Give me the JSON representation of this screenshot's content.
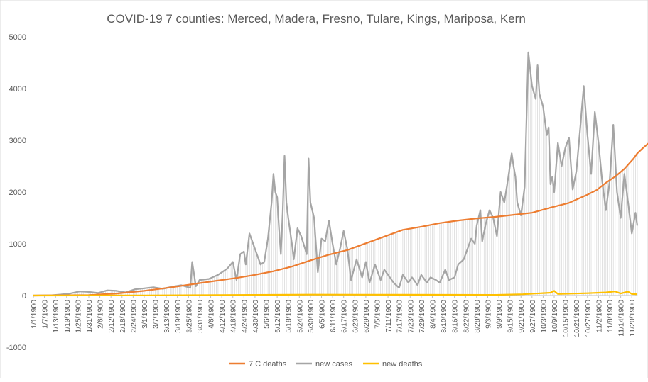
{
  "chart_data": {
    "type": "line",
    "title": "COVID-19 7 counties:  Merced,  Madera,  Fresno, Tulare,  Kings,  Mariposa,  Kern",
    "xlabel": "",
    "ylabel": "",
    "ylim": [
      -1000,
      5000
    ],
    "yticks": [
      -1000,
      0,
      1000,
      2000,
      3000,
      4000,
      5000
    ],
    "x_start": "1/1/1900",
    "x_end": "11/24/1900",
    "x_tick_step_days": 6,
    "x_tick_labels": [
      "1/1/1900",
      "1/7/1900",
      "1/13/1900",
      "1/19/1900",
      "1/25/1900",
      "1/31/1900",
      "2/6/1900",
      "2/12/1900",
      "2/18/1900",
      "2/24/1900",
      "3/1/1900",
      "3/7/1900",
      "3/13/1900",
      "3/19/1900",
      "3/25/1900",
      "3/31/1900",
      "4/6/1900",
      "4/12/1900",
      "4/18/1900",
      "4/24/1900",
      "4/30/1900",
      "5/6/1900",
      "5/12/1900",
      "5/18/1900",
      "5/24/1900",
      "5/30/1900",
      "6/5/1900",
      "6/11/1900",
      "6/17/1900",
      "6/23/1900",
      "6/29/1900",
      "7/5/1900",
      "7/11/1900",
      "7/17/1900",
      "7/23/1900",
      "7/29/1900",
      "8/4/1900",
      "8/10/1900",
      "8/16/1900",
      "8/22/1900",
      "8/28/1900",
      "9/3/1900",
      "9/9/1900",
      "9/15/1900",
      "9/21/1900",
      "9/27/1900",
      "10/3/1900",
      "10/9/1900",
      "10/15/1900",
      "10/21/1900",
      "10/27/1900",
      "11/2/1900",
      "11/8/1900",
      "11/14/1900",
      "11/20/1900"
    ],
    "grid": false,
    "drop_lines": true,
    "legend_position": "bottom",
    "series": [
      {
        "name": "7 C deaths",
        "color": "#ED7D31",
        "points": [
          [
            0,
            0
          ],
          [
            30,
            10
          ],
          [
            45,
            40
          ],
          [
            60,
            90
          ],
          [
            75,
            160
          ],
          [
            90,
            240
          ],
          [
            100,
            290
          ],
          [
            110,
            340
          ],
          [
            120,
            400
          ],
          [
            130,
            470
          ],
          [
            140,
            560
          ],
          [
            150,
            680
          ],
          [
            160,
            790
          ],
          [
            170,
            880
          ],
          [
            180,
            1010
          ],
          [
            190,
            1140
          ],
          [
            200,
            1270
          ],
          [
            210,
            1330
          ],
          [
            220,
            1400
          ],
          [
            230,
            1450
          ],
          [
            240,
            1490
          ],
          [
            250,
            1520
          ],
          [
            260,
            1560
          ],
          [
            270,
            1600
          ],
          [
            280,
            1700
          ],
          [
            290,
            1790
          ],
          [
            300,
            1950
          ],
          [
            305,
            2040
          ],
          [
            310,
            2180
          ],
          [
            315,
            2300
          ],
          [
            320,
            2450
          ],
          [
            325,
            2650
          ],
          [
            330,
            2850
          ],
          [
            335,
            3000
          ],
          [
            327,
            2750
          ]
        ]
      },
      {
        "name": "new cases",
        "color": "#A5A5A5",
        "points": [
          [
            0,
            0
          ],
          [
            10,
            5
          ],
          [
            15,
            20
          ],
          [
            20,
            40
          ],
          [
            25,
            80
          ],
          [
            30,
            70
          ],
          [
            35,
            50
          ],
          [
            40,
            100
          ],
          [
            45,
            90
          ],
          [
            50,
            60
          ],
          [
            55,
            120
          ],
          [
            60,
            140
          ],
          [
            65,
            160
          ],
          [
            70,
            130
          ],
          [
            75,
            170
          ],
          [
            80,
            200
          ],
          [
            85,
            150
          ],
          [
            86,
            650
          ],
          [
            88,
            180
          ],
          [
            90,
            300
          ],
          [
            95,
            320
          ],
          [
            100,
            400
          ],
          [
            105,
            520
          ],
          [
            108,
            650
          ],
          [
            110,
            300
          ],
          [
            112,
            800
          ],
          [
            114,
            850
          ],
          [
            115,
            600
          ],
          [
            117,
            1200
          ],
          [
            120,
            900
          ],
          [
            123,
            600
          ],
          [
            125,
            650
          ],
          [
            127,
            1100
          ],
          [
            129,
            1800
          ],
          [
            130,
            2350
          ],
          [
            131,
            2000
          ],
          [
            132,
            1900
          ],
          [
            133,
            1300
          ],
          [
            134,
            800
          ],
          [
            135,
            1600
          ],
          [
            136,
            2700
          ],
          [
            137,
            1800
          ],
          [
            138,
            1500
          ],
          [
            140,
            1000
          ],
          [
            141,
            700
          ],
          [
            143,
            1300
          ],
          [
            145,
            1150
          ],
          [
            148,
            800
          ],
          [
            149,
            2650
          ],
          [
            150,
            1800
          ],
          [
            152,
            1500
          ],
          [
            154,
            450
          ],
          [
            156,
            1100
          ],
          [
            158,
            1050
          ],
          [
            160,
            1450
          ],
          [
            162,
            1000
          ],
          [
            164,
            600
          ],
          [
            166,
            900
          ],
          [
            168,
            1250
          ],
          [
            170,
            900
          ],
          [
            172,
            300
          ],
          [
            175,
            700
          ],
          [
            178,
            350
          ],
          [
            180,
            650
          ],
          [
            182,
            250
          ],
          [
            185,
            600
          ],
          [
            188,
            300
          ],
          [
            190,
            500
          ],
          [
            193,
            350
          ],
          [
            195,
            250
          ],
          [
            198,
            150
          ],
          [
            200,
            400
          ],
          [
            203,
            250
          ],
          [
            205,
            350
          ],
          [
            208,
            200
          ],
          [
            210,
            400
          ],
          [
            213,
            250
          ],
          [
            215,
            350
          ],
          [
            218,
            300
          ],
          [
            220,
            250
          ],
          [
            223,
            500
          ],
          [
            225,
            300
          ],
          [
            228,
            350
          ],
          [
            230,
            600
          ],
          [
            233,
            700
          ],
          [
            235,
            900
          ],
          [
            237,
            1100
          ],
          [
            239,
            1000
          ],
          [
            240,
            1350
          ],
          [
            242,
            1650
          ],
          [
            243,
            1050
          ],
          [
            245,
            1400
          ],
          [
            247,
            1650
          ],
          [
            249,
            1500
          ],
          [
            251,
            1150
          ],
          [
            253,
            2000
          ],
          [
            255,
            1800
          ],
          [
            257,
            2250
          ],
          [
            259,
            2750
          ],
          [
            260,
            2500
          ],
          [
            261,
            2300
          ],
          [
            262,
            1800
          ],
          [
            264,
            1550
          ],
          [
            266,
            2100
          ],
          [
            268,
            4700
          ],
          [
            270,
            4050
          ],
          [
            272,
            3800
          ],
          [
            273,
            4450
          ],
          [
            274,
            3900
          ],
          [
            276,
            3650
          ],
          [
            278,
            3100
          ],
          [
            279,
            3250
          ],
          [
            280,
            2150
          ],
          [
            281,
            2300
          ],
          [
            282,
            2000
          ],
          [
            284,
            2950
          ],
          [
            286,
            2500
          ],
          [
            288,
            2850
          ],
          [
            290,
            3050
          ],
          [
            292,
            2050
          ],
          [
            294,
            2400
          ],
          [
            296,
            3200
          ],
          [
            298,
            4050
          ],
          [
            300,
            3100
          ],
          [
            302,
            2350
          ],
          [
            304,
            3550
          ],
          [
            306,
            2950
          ],
          [
            308,
            2200
          ],
          [
            310,
            1650
          ],
          [
            312,
            2200
          ],
          [
            314,
            3300
          ],
          [
            316,
            2000
          ],
          [
            318,
            1500
          ],
          [
            320,
            2350
          ],
          [
            322,
            1800
          ],
          [
            324,
            1200
          ],
          [
            326,
            1600
          ],
          [
            327,
            1350
          ]
        ]
      },
      {
        "name": "new deaths",
        "color": "#FFC000",
        "points": [
          [
            0,
            0
          ],
          [
            60,
            3
          ],
          [
            100,
            8
          ],
          [
            150,
            18
          ],
          [
            200,
            15
          ],
          [
            250,
            12
          ],
          [
            265,
            25
          ],
          [
            280,
            55
          ],
          [
            282,
            90
          ],
          [
            284,
            30
          ],
          [
            300,
            45
          ],
          [
            310,
            60
          ],
          [
            315,
            80
          ],
          [
            318,
            40
          ],
          [
            322,
            75
          ],
          [
            324,
            30
          ],
          [
            327,
            25
          ]
        ]
      }
    ]
  }
}
